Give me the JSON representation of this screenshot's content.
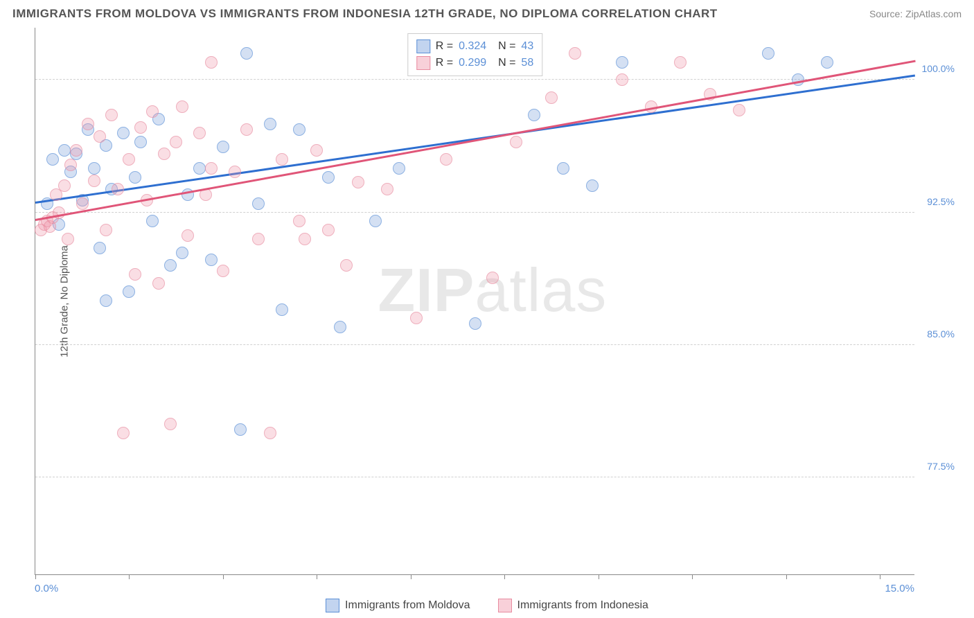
{
  "header": {
    "title": "IMMIGRANTS FROM MOLDOVA VS IMMIGRANTS FROM INDONESIA 12TH GRADE, NO DIPLOMA CORRELATION CHART",
    "source": "Source: ZipAtlas.com"
  },
  "chart": {
    "type": "scatter",
    "y_axis_title": "12th Grade, No Diploma",
    "x_range": [
      0,
      15
    ],
    "y_range": [
      72,
      103
    ],
    "x_start_label": "0.0%",
    "x_end_label": "15.0%",
    "y_ticks": [
      {
        "value": 77.5,
        "label": "77.5%"
      },
      {
        "value": 85.0,
        "label": "85.0%"
      },
      {
        "value": 92.5,
        "label": "92.5%"
      },
      {
        "value": 100.0,
        "label": "100.0%"
      }
    ],
    "x_tick_positions": [
      0,
      1.6,
      3.2,
      4.8,
      6.4,
      8.0,
      9.6,
      11.2,
      12.8,
      14.4
    ],
    "background_color": "#ffffff",
    "grid_color": "#d0d0d0",
    "axis_color": "#888888",
    "label_color": "#5b8fd6",
    "series": [
      {
        "name": "Immigrants from Moldova",
        "fill_color": "rgba(120,160,220,0.45)",
        "stroke_color": "#5b8fd6",
        "line_color": "#2e6fd0",
        "R": "0.324",
        "N": "43",
        "trend": {
          "x1": 0,
          "y1": 93.0,
          "x2": 15,
          "y2": 100.2
        },
        "points": [
          [
            0.2,
            93.0
          ],
          [
            0.3,
            95.5
          ],
          [
            0.4,
            91.8
          ],
          [
            0.5,
            96.0
          ],
          [
            0.6,
            94.8
          ],
          [
            0.7,
            95.8
          ],
          [
            0.8,
            93.2
          ],
          [
            0.9,
            97.2
          ],
          [
            1.0,
            95.0
          ],
          [
            1.1,
            90.5
          ],
          [
            1.2,
            96.3
          ],
          [
            1.3,
            93.8
          ],
          [
            1.5,
            97.0
          ],
          [
            1.6,
            88.0
          ],
          [
            1.7,
            94.5
          ],
          [
            1.8,
            96.5
          ],
          [
            2.0,
            92.0
          ],
          [
            2.1,
            97.8
          ],
          [
            2.3,
            89.5
          ],
          [
            2.5,
            90.2
          ],
          [
            2.6,
            93.5
          ],
          [
            2.8,
            95.0
          ],
          [
            3.0,
            89.8
          ],
          [
            3.2,
            96.2
          ],
          [
            3.5,
            80.2
          ],
          [
            3.6,
            101.5
          ],
          [
            3.8,
            93.0
          ],
          [
            4.0,
            97.5
          ],
          [
            4.2,
            87.0
          ],
          [
            4.5,
            97.2
          ],
          [
            5.0,
            94.5
          ],
          [
            5.2,
            86.0
          ],
          [
            5.8,
            92.0
          ],
          [
            6.2,
            95.0
          ],
          [
            7.5,
            86.2
          ],
          [
            8.5,
            98.0
          ],
          [
            9.0,
            95.0
          ],
          [
            9.5,
            94.0
          ],
          [
            10.0,
            101.0
          ],
          [
            12.5,
            101.5
          ],
          [
            13.0,
            100.0
          ],
          [
            13.5,
            101.0
          ],
          [
            1.2,
            87.5
          ]
        ]
      },
      {
        "name": "Immigrants from Indonesia",
        "fill_color": "rgba(240,150,170,0.45)",
        "stroke_color": "#e88ca0",
        "line_color": "#e05578",
        "R": "0.299",
        "N": "58",
        "trend": {
          "x1": 0,
          "y1": 92.0,
          "x2": 15,
          "y2": 101.0
        },
        "points": [
          [
            0.1,
            91.5
          ],
          [
            0.15,
            91.8
          ],
          [
            0.2,
            92.0
          ],
          [
            0.25,
            91.7
          ],
          [
            0.3,
            92.2
          ],
          [
            0.35,
            93.5
          ],
          [
            0.4,
            92.5
          ],
          [
            0.5,
            94.0
          ],
          [
            0.55,
            91.0
          ],
          [
            0.6,
            95.2
          ],
          [
            0.7,
            96.0
          ],
          [
            0.8,
            93.0
          ],
          [
            0.9,
            97.5
          ],
          [
            1.0,
            94.3
          ],
          [
            1.1,
            96.8
          ],
          [
            1.2,
            91.5
          ],
          [
            1.3,
            98.0
          ],
          [
            1.4,
            93.8
          ],
          [
            1.5,
            80.0
          ],
          [
            1.6,
            95.5
          ],
          [
            1.7,
            89.0
          ],
          [
            1.8,
            97.3
          ],
          [
            1.9,
            93.2
          ],
          [
            2.0,
            98.2
          ],
          [
            2.1,
            88.5
          ],
          [
            2.2,
            95.8
          ],
          [
            2.3,
            80.5
          ],
          [
            2.4,
            96.5
          ],
          [
            2.5,
            98.5
          ],
          [
            2.6,
            91.2
          ],
          [
            2.8,
            97.0
          ],
          [
            2.9,
            93.5
          ],
          [
            3.0,
            101.0
          ],
          [
            3.2,
            89.2
          ],
          [
            3.4,
            94.8
          ],
          [
            3.6,
            97.2
          ],
          [
            3.8,
            91.0
          ],
          [
            4.0,
            80.0
          ],
          [
            4.2,
            95.5
          ],
          [
            4.5,
            92.0
          ],
          [
            4.6,
            91.0
          ],
          [
            4.8,
            96.0
          ],
          [
            5.0,
            91.5
          ],
          [
            5.3,
            89.5
          ],
          [
            5.5,
            94.2
          ],
          [
            6.0,
            93.8
          ],
          [
            6.5,
            86.5
          ],
          [
            7.0,
            95.5
          ],
          [
            7.8,
            88.8
          ],
          [
            8.2,
            96.5
          ],
          [
            8.8,
            99.0
          ],
          [
            9.2,
            101.5
          ],
          [
            10.0,
            100.0
          ],
          [
            10.5,
            98.5
          ],
          [
            11.0,
            101.0
          ],
          [
            11.5,
            99.2
          ],
          [
            12.0,
            98.3
          ],
          [
            3.0,
            95.0
          ]
        ]
      }
    ],
    "watermark": {
      "part1": "ZIP",
      "part2": "atlas"
    }
  },
  "bottom_legend": [
    {
      "label": "Immigrants from Moldova",
      "series_idx": 0
    },
    {
      "label": "Immigrants from Indonesia",
      "series_idx": 1
    }
  ]
}
